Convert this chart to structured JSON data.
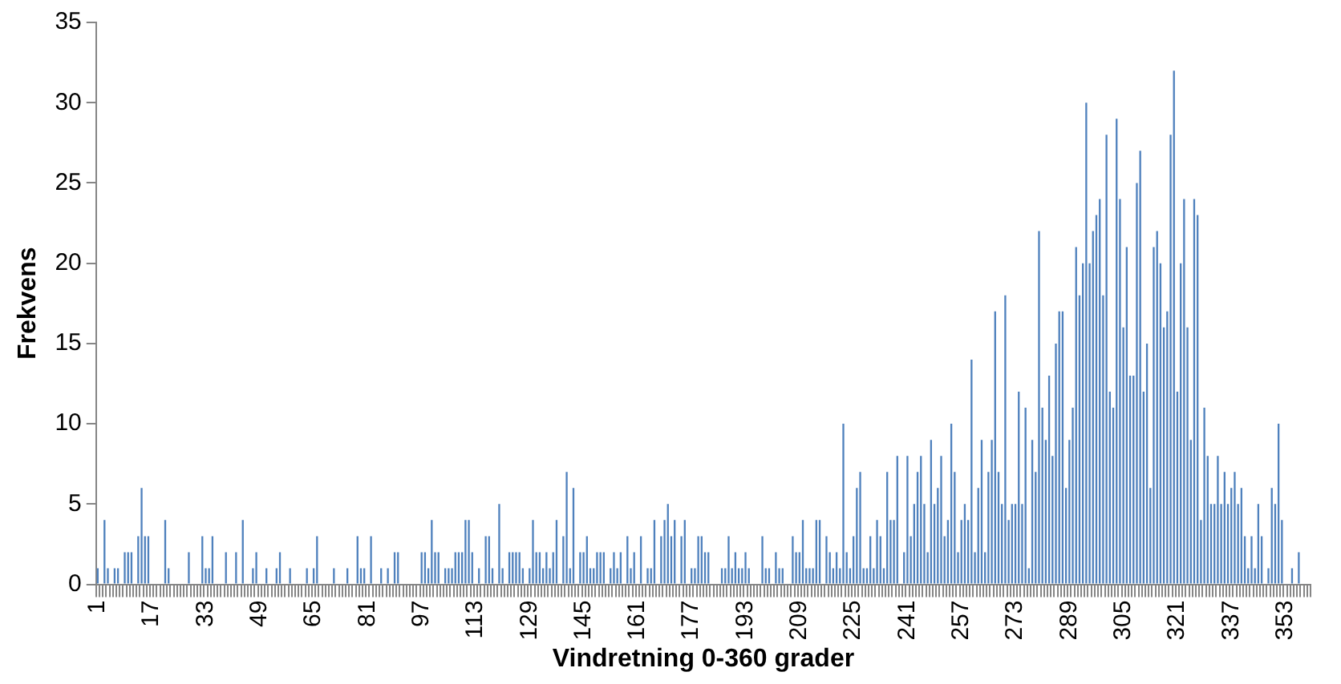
{
  "chart_data": {
    "type": "bar",
    "xlabel": "Vindretning 0-360 grader",
    "ylabel": "Frekvens",
    "categories": [
      "1",
      null,
      null,
      null,
      null,
      null,
      null,
      null,
      null,
      null,
      null,
      null,
      null,
      null,
      null,
      null,
      "17",
      null,
      null,
      null,
      null,
      null,
      null,
      null,
      null,
      null,
      null,
      null,
      null,
      null,
      null,
      null,
      "33",
      null,
      null,
      null,
      null,
      null,
      null,
      null,
      null,
      null,
      null,
      null,
      null,
      null,
      null,
      null,
      "49",
      null,
      null,
      null,
      null,
      null,
      null,
      null,
      null,
      null,
      null,
      null,
      null,
      null,
      null,
      null,
      "65",
      null,
      null,
      null,
      null,
      null,
      null,
      null,
      null,
      null,
      null,
      null,
      null,
      null,
      null,
      null,
      "81",
      null,
      null,
      null,
      null,
      null,
      null,
      null,
      null,
      null,
      null,
      null,
      null,
      null,
      null,
      null,
      "97",
      null,
      null,
      null,
      null,
      null,
      null,
      null,
      null,
      null,
      null,
      null,
      null,
      null,
      null,
      null,
      "113",
      null,
      null,
      null,
      null,
      null,
      null,
      null,
      null,
      null,
      null,
      null,
      null,
      null,
      null,
      null,
      "129",
      null,
      null,
      null,
      null,
      null,
      null,
      null,
      null,
      null,
      null,
      null,
      null,
      null,
      null,
      null,
      "145",
      null,
      null,
      null,
      null,
      null,
      null,
      null,
      null,
      null,
      null,
      null,
      null,
      null,
      null,
      null,
      "161",
      null,
      null,
      null,
      null,
      null,
      null,
      null,
      null,
      null,
      null,
      null,
      null,
      null,
      null,
      null,
      "177",
      null,
      null,
      null,
      null,
      null,
      null,
      null,
      null,
      null,
      null,
      null,
      null,
      null,
      null,
      null,
      "193",
      null,
      null,
      null,
      null,
      null,
      null,
      null,
      null,
      null,
      null,
      null,
      null,
      null,
      null,
      null,
      "209",
      null,
      null,
      null,
      null,
      null,
      null,
      null,
      null,
      null,
      null,
      null,
      null,
      null,
      null,
      null,
      "225",
      null,
      null,
      null,
      null,
      null,
      null,
      null,
      null,
      null,
      null,
      null,
      null,
      null,
      null,
      null,
      "241",
      null,
      null,
      null,
      null,
      null,
      null,
      null,
      null,
      null,
      null,
      null,
      null,
      null,
      null,
      null,
      "257",
      null,
      null,
      null,
      null,
      null,
      null,
      null,
      null,
      null,
      null,
      null,
      null,
      null,
      null,
      null,
      "273",
      null,
      null,
      null,
      null,
      null,
      null,
      null,
      null,
      null,
      null,
      null,
      null,
      null,
      null,
      null,
      "289",
      null,
      null,
      null,
      null,
      null,
      null,
      null,
      null,
      null,
      null,
      null,
      null,
      null,
      null,
      null,
      "305",
      null,
      null,
      null,
      null,
      null,
      null,
      null,
      null,
      null,
      null,
      null,
      null,
      null,
      null,
      null,
      "321",
      null,
      null,
      null,
      null,
      null,
      null,
      null,
      null,
      null,
      null,
      null,
      null,
      null,
      null,
      null,
      "337",
      null,
      null,
      null,
      null,
      null,
      null,
      null,
      null,
      null,
      null,
      null,
      null,
      null,
      null,
      null,
      "353",
      null,
      null,
      null,
      null,
      null,
      null,
      null
    ],
    "values": [
      1,
      0,
      4,
      1,
      0,
      1,
      1,
      0,
      2,
      2,
      2,
      0,
      3,
      6,
      3,
      3,
      0,
      0,
      0,
      0,
      4,
      1,
      0,
      0,
      0,
      0,
      0,
      2,
      0,
      0,
      0,
      3,
      1,
      1,
      3,
      0,
      0,
      0,
      2,
      0,
      0,
      2,
      0,
      4,
      0,
      0,
      1,
      2,
      0,
      0,
      1,
      0,
      0,
      1,
      2,
      0,
      0,
      1,
      0,
      0,
      0,
      0,
      1,
      0,
      1,
      3,
      0,
      0,
      0,
      0,
      1,
      0,
      0,
      0,
      1,
      0,
      0,
      3,
      1,
      1,
      0,
      3,
      0,
      0,
      1,
      0,
      1,
      0,
      2,
      2,
      0,
      0,
      0,
      0,
      0,
      0,
      2,
      2,
      1,
      4,
      2,
      2,
      0,
      1,
      1,
      1,
      2,
      2,
      2,
      4,
      4,
      2,
      0,
      1,
      0,
      3,
      3,
      1,
      0,
      5,
      1,
      0,
      2,
      2,
      2,
      2,
      1,
      0,
      1,
      4,
      2,
      2,
      1,
      2,
      1,
      2,
      4,
      0,
      3,
      7,
      1,
      6,
      0,
      2,
      2,
      3,
      1,
      1,
      2,
      2,
      2,
      0,
      1,
      2,
      1,
      2,
      0,
      3,
      1,
      2,
      0,
      3,
      0,
      1,
      1,
      4,
      0,
      3,
      4,
      5,
      3,
      4,
      0,
      3,
      4,
      0,
      1,
      1,
      3,
      3,
      2,
      2,
      0,
      0,
      0,
      1,
      1,
      3,
      1,
      2,
      1,
      1,
      2,
      1,
      0,
      0,
      0,
      3,
      1,
      1,
      0,
      2,
      1,
      1,
      0,
      0,
      3,
      2,
      2,
      4,
      1,
      1,
      1,
      4,
      4,
      0,
      3,
      2,
      1,
      2,
      1,
      10,
      2,
      1,
      3,
      6,
      7,
      1,
      1,
      3,
      1,
      4,
      3,
      1,
      7,
      4,
      4,
      8,
      0,
      2,
      8,
      3,
      5,
      7,
      8,
      5,
      2,
      9,
      5,
      6,
      8,
      3,
      4,
      10,
      7,
      2,
      4,
      5,
      4,
      14,
      2,
      6,
      9,
      2,
      7,
      9,
      17,
      7,
      5,
      18,
      4,
      5,
      5,
      12,
      5,
      11,
      1,
      9,
      7,
      22,
      11,
      9,
      13,
      8,
      15,
      17,
      17,
      6,
      9,
      11,
      21,
      18,
      20,
      30,
      20,
      22,
      23,
      24,
      18,
      28,
      12,
      11,
      29,
      24,
      16,
      21,
      13,
      13,
      25,
      27,
      12,
      15,
      6,
      21,
      22,
      20,
      16,
      17,
      28,
      32,
      12,
      20,
      24,
      16,
      9,
      24,
      23,
      4,
      11,
      8,
      5,
      5,
      8,
      5,
      7,
      5,
      6,
      7,
      5,
      6,
      3,
      1,
      3,
      1,
      5,
      3,
      0,
      1,
      6,
      5,
      10,
      4,
      0,
      0,
      1,
      0,
      2,
      0,
      0,
      0
    ],
    "color": "#4f81bd",
    "ylim": [
      0,
      35
    ],
    "yticks": [
      0,
      5,
      10,
      15,
      20,
      25,
      30,
      35
    ]
  }
}
